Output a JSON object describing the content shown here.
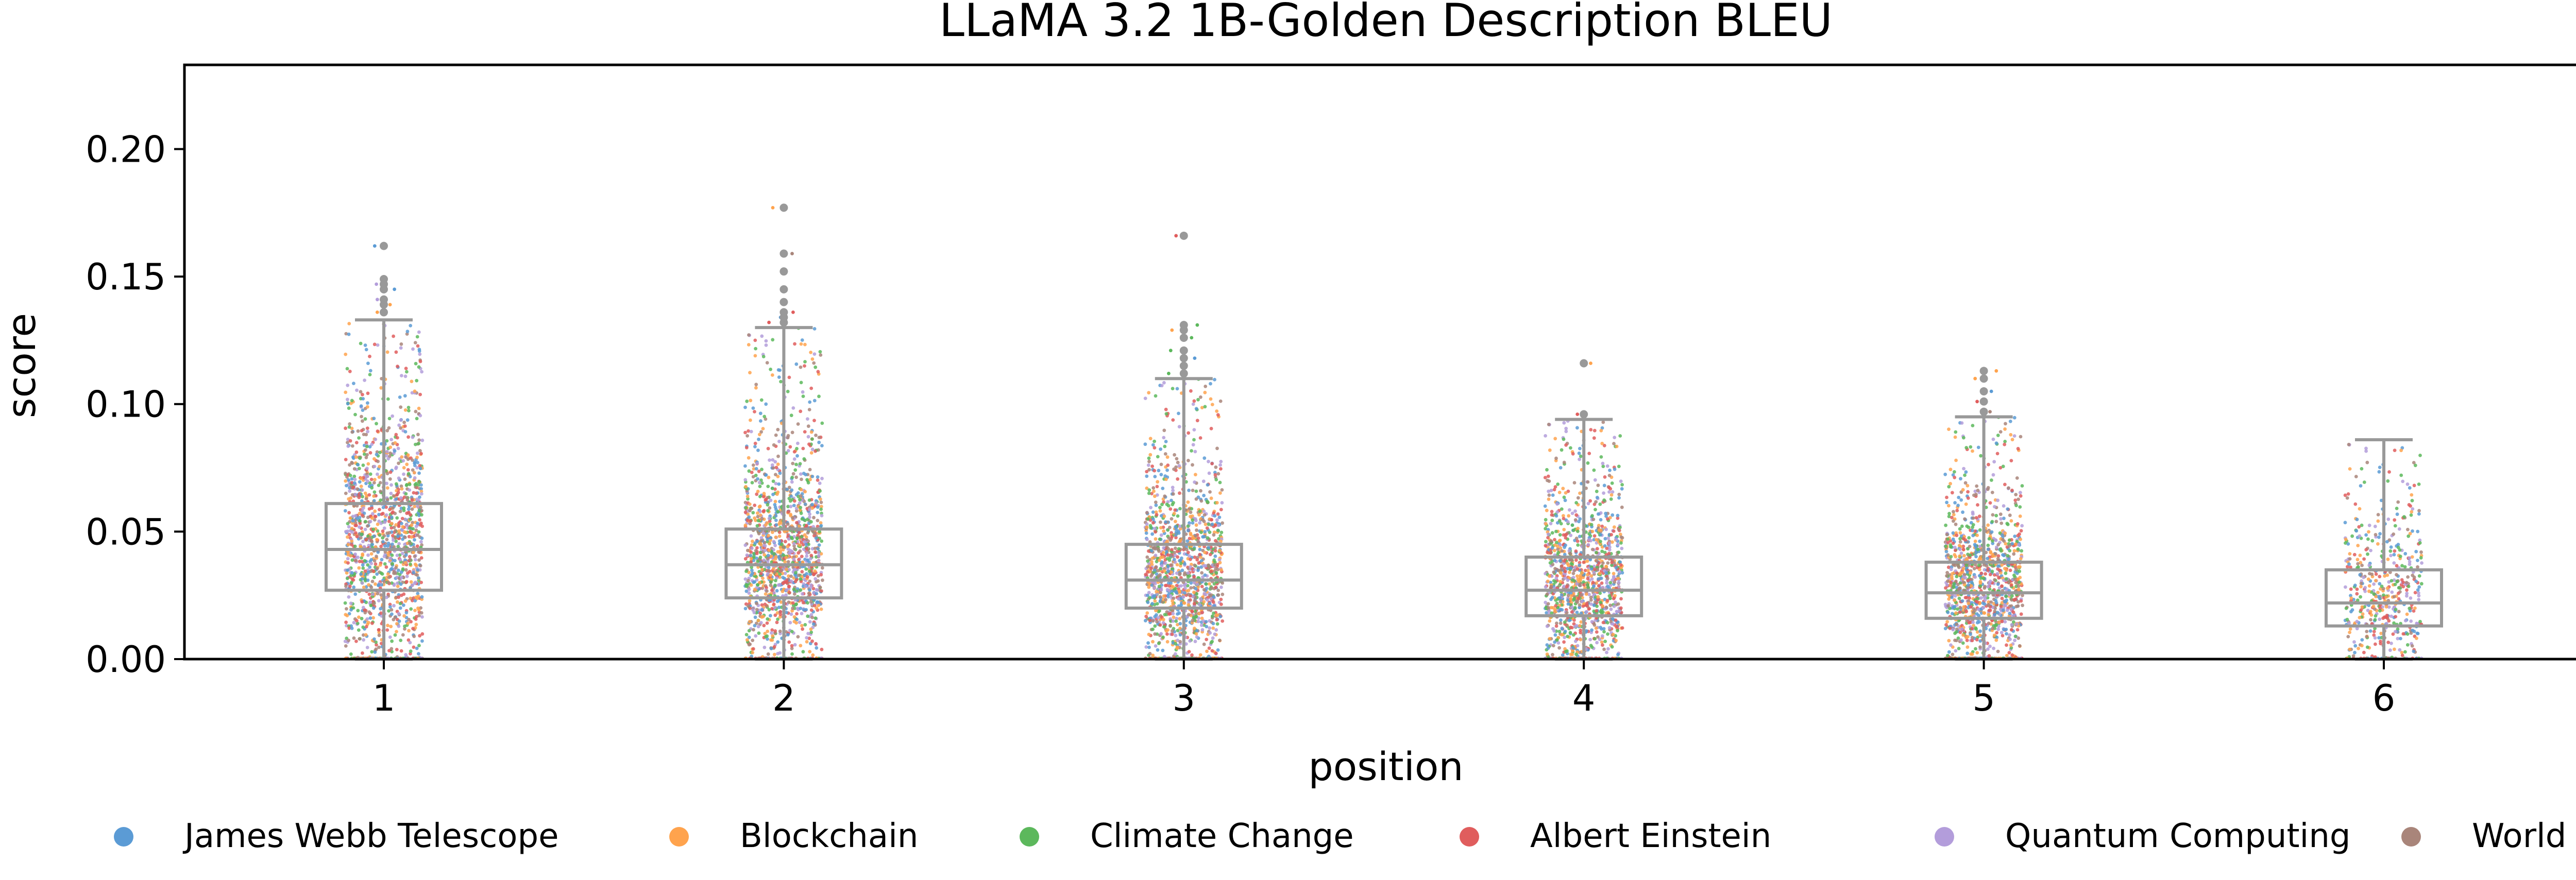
{
  "chart_data": {
    "type": "box",
    "title": "LLaMA 3.2 1B-Golden Description BLEU",
    "xlabel": "position",
    "ylabel": "score",
    "ylim": [
      0,
      0.233
    ],
    "yticks": [
      "0.00",
      "0.05",
      "0.10",
      "0.15",
      "0.20"
    ],
    "categories": [
      "1",
      "2",
      "3",
      "4",
      "5",
      "6"
    ],
    "boxes": [
      {
        "position": "1",
        "whisker_low": 0.0,
        "q1": 0.027,
        "median": 0.043,
        "q3": 0.061,
        "whisker_high": 0.133,
        "outliers": [
          0.136,
          0.139,
          0.141,
          0.145,
          0.147,
          0.149,
          0.162
        ]
      },
      {
        "position": "2",
        "whisker_low": 0.0,
        "q1": 0.024,
        "median": 0.037,
        "q3": 0.051,
        "whisker_high": 0.13,
        "outliers": [
          0.132,
          0.134,
          0.136,
          0.14,
          0.145,
          0.152,
          0.159,
          0.177
        ]
      },
      {
        "position": "3",
        "whisker_low": 0.0,
        "q1": 0.02,
        "median": 0.031,
        "q3": 0.045,
        "whisker_high": 0.11,
        "outliers": [
          0.112,
          0.115,
          0.118,
          0.121,
          0.126,
          0.129,
          0.131,
          0.166
        ]
      },
      {
        "position": "4",
        "whisker_low": 0.0,
        "q1": 0.017,
        "median": 0.027,
        "q3": 0.04,
        "whisker_high": 0.094,
        "outliers": [
          0.096,
          0.116
        ]
      },
      {
        "position": "5",
        "whisker_low": 0.0,
        "q1": 0.016,
        "median": 0.026,
        "q3": 0.038,
        "whisker_high": 0.095,
        "outliers": [
          0.097,
          0.101,
          0.105,
          0.11,
          0.113
        ]
      },
      {
        "position": "6",
        "whisker_low": 0.0,
        "q1": 0.013,
        "median": 0.022,
        "q3": 0.035,
        "whisker_high": 0.086,
        "outliers": []
      }
    ],
    "strip_points_per_position": [
      1400,
      1400,
      1300,
      1200,
      1200,
      500
    ],
    "series": [
      {
        "name": "James Webb Telescope",
        "color": "#5b9bd5"
      },
      {
        "name": "Blockchain",
        "color": "#ffa34d"
      },
      {
        "name": "Climate Change",
        "color": "#5cb85c"
      },
      {
        "name": "Albert Einstein",
        "color": "#e05d5d"
      },
      {
        "name": "Quantum Computing",
        "color": "#b39ddb"
      },
      {
        "name": "World War II",
        "color": "#a9857a"
      }
    ],
    "box_color": "#999999",
    "legend_position": "bottom",
    "grid": false
  }
}
